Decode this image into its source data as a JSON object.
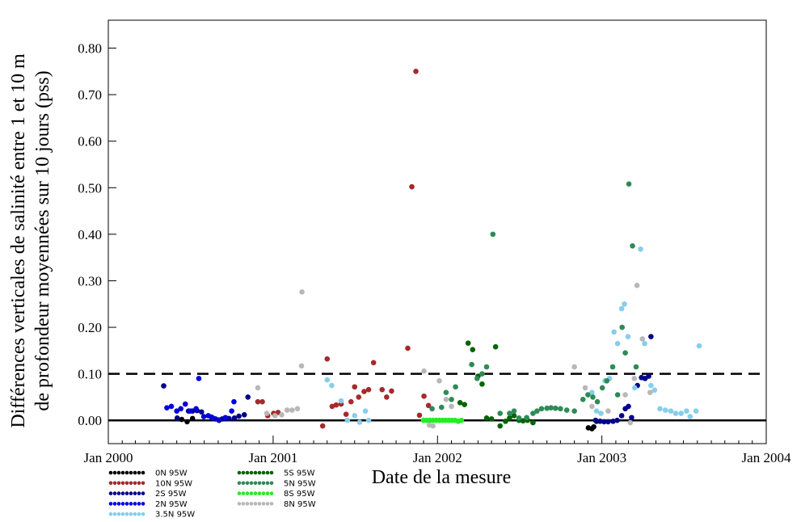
{
  "chart_data": {
    "type": "scatter",
    "title": "",
    "xlabel": "Date de la mesure",
    "ylabel_lines": [
      "Différences verticales de salinité entre 1 et 10 m",
      "de profondeur moyennées sur 10 jours (pss)"
    ],
    "xlim": [
      "2000-01-01",
      "2004-01-01"
    ],
    "ylim": [
      -0.05,
      0.86
    ],
    "x_ticks": [
      {
        "date": "2000-01-01",
        "label": "Jan 2000"
      },
      {
        "date": "2001-01-01",
        "label": "Jan 2001"
      },
      {
        "date": "2002-01-01",
        "label": "Jan 2002"
      },
      {
        "date": "2003-01-01",
        "label": "Jan 2003"
      },
      {
        "date": "2004-01-01",
        "label": "Jan 2004"
      }
    ],
    "y_ticks": [
      0,
      0.1,
      0.2,
      0.3,
      0.4,
      0.5,
      0.6,
      0.7,
      0.8
    ],
    "y_tick_labels": [
      "0.00",
      "0.10",
      "0.20",
      "0.30",
      "0.40",
      "0.50",
      "0.60",
      "0.70",
      "0.80"
    ],
    "reference_lines": [
      {
        "y": 0.0,
        "style": "solid"
      },
      {
        "y": 0.1,
        "style": "dashed"
      }
    ],
    "grid": false,
    "legend_position": "bottom-left",
    "series": [
      {
        "name": "0N 95W",
        "color": "#000000",
        "points": [
          [
            "2000-06-12",
            0.002
          ],
          [
            "2000-06-24",
            -0.003
          ],
          [
            "2000-07-06",
            0.004
          ],
          [
            "2000-09-03",
            0.0
          ],
          [
            "2002-12-02",
            -0.016
          ],
          [
            "2002-12-10",
            -0.018
          ],
          [
            "2002-12-14",
            -0.014
          ],
          [
            "2002-12-20",
            -0.002
          ]
        ]
      },
      {
        "name": "10N 95W",
        "color": "#a52a2a",
        "points": [
          [
            "2000-11-28",
            0.04
          ],
          [
            "2000-12-08",
            0.04
          ],
          [
            "2000-12-20",
            0.01
          ],
          [
            "2001-01-02",
            0.015
          ],
          [
            "2001-01-12",
            0.017
          ],
          [
            "2001-04-21",
            -0.012
          ],
          [
            "2001-05-01",
            0.132
          ],
          [
            "2001-05-12",
            0.03
          ],
          [
            "2001-05-21",
            0.033
          ],
          [
            "2001-06-01",
            0.035
          ],
          [
            "2001-06-12",
            0.013
          ],
          [
            "2001-06-23",
            0.04
          ],
          [
            "2001-07-01",
            0.072
          ],
          [
            "2001-07-10",
            0.05
          ],
          [
            "2001-07-22",
            0.062
          ],
          [
            "2001-08-01",
            0.066
          ],
          [
            "2001-08-12",
            0.124
          ],
          [
            "2001-08-31",
            0.066
          ],
          [
            "2001-09-10",
            0.05
          ],
          [
            "2001-09-21",
            0.063
          ],
          [
            "2001-10-27",
            0.155
          ],
          [
            "2001-11-05",
            0.502
          ],
          [
            "2001-11-14",
            0.75
          ],
          [
            "2001-11-22",
            0.011
          ],
          [
            "2001-12-02",
            0.052
          ],
          [
            "2001-12-12",
            0.032
          ]
        ]
      },
      {
        "name": "2S 95W",
        "color": "#00008b",
        "points": [
          [
            "2000-05-03",
            0.074
          ],
          [
            "2000-06-02",
            0.005
          ],
          [
            "2000-06-27",
            0.02
          ],
          [
            "2000-07-06",
            0.02
          ],
          [
            "2000-07-16",
            0.021
          ],
          [
            "2000-07-26",
            0.018
          ],
          [
            "2000-08-17",
            0.007
          ],
          [
            "2000-08-26",
            0.003
          ],
          [
            "2000-09-10",
            0.003
          ],
          [
            "2000-09-18",
            0.005
          ],
          [
            "2000-09-25",
            0.004
          ],
          [
            "2000-10-07",
            0.005
          ],
          [
            "2000-10-17",
            0.009
          ],
          [
            "2000-10-29",
            0.012
          ],
          [
            "2000-11-06",
            0.05
          ],
          [
            "2002-12-18",
            0.0
          ],
          [
            "2002-12-28",
            -0.002
          ],
          [
            "2003-01-06",
            -0.003
          ],
          [
            "2003-01-15",
            -0.003
          ],
          [
            "2003-01-26",
            -0.002
          ],
          [
            "2003-02-04",
            0.0
          ],
          [
            "2003-02-14",
            0.01
          ],
          [
            "2003-02-22",
            0.025
          ],
          [
            "2003-03-01",
            0.03
          ],
          [
            "2003-03-08",
            0.006
          ],
          [
            "2003-03-21",
            0.075
          ],
          [
            "2003-03-30",
            0.092
          ],
          [
            "2003-04-07",
            0.09
          ],
          [
            "2003-04-15",
            0.095
          ],
          [
            "2003-04-20",
            0.18
          ]
        ]
      },
      {
        "name": "2N 95W",
        "color": "#0000dd",
        "points": [
          [
            "2000-05-10",
            0.027
          ],
          [
            "2000-05-20",
            0.03
          ],
          [
            "2000-06-01",
            0.02
          ],
          [
            "2000-06-10",
            0.025
          ],
          [
            "2000-06-20",
            0.035
          ],
          [
            "2000-07-01",
            0.02
          ],
          [
            "2000-07-14",
            0.025
          ],
          [
            "2000-07-20",
            0.09
          ],
          [
            "2000-07-31",
            0.008
          ],
          [
            "2000-08-10",
            0.01
          ],
          [
            "2000-08-20",
            0.005
          ],
          [
            "2000-09-02",
            0.001
          ],
          [
            "2000-09-17",
            0.006
          ],
          [
            "2000-10-01",
            0.02
          ],
          [
            "2000-10-06",
            0.04
          ]
        ]
      },
      {
        "name": "3.5N 95W",
        "color": "#87ceeb",
        "points": [
          [
            "2001-05-01",
            0.087
          ],
          [
            "2001-05-11",
            0.075
          ],
          [
            "2001-06-01",
            0.042
          ],
          [
            "2001-06-15",
            0.0
          ],
          [
            "2001-07-01",
            0.01
          ],
          [
            "2001-07-12",
            -0.004
          ],
          [
            "2001-07-25",
            0.02
          ],
          [
            "2001-08-01",
            0.0
          ],
          [
            "2002-12-10",
            0.06
          ],
          [
            "2002-12-20",
            0.02
          ],
          [
            "2002-12-30",
            0.015
          ],
          [
            "2003-01-08",
            0.085
          ],
          [
            "2003-01-18",
            0.09
          ],
          [
            "2003-01-28",
            0.19
          ],
          [
            "2003-02-05",
            0.165
          ],
          [
            "2003-02-14",
            0.24
          ],
          [
            "2003-02-20",
            0.25
          ],
          [
            "2003-02-28",
            0.18
          ],
          [
            "2003-03-15",
            0.07
          ],
          [
            "2003-03-28",
            0.368
          ],
          [
            "2003-04-06",
            0.165
          ],
          [
            "2003-04-20",
            0.075
          ],
          [
            "2003-04-28",
            0.065
          ],
          [
            "2003-05-10",
            0.025
          ],
          [
            "2003-05-22",
            0.022
          ],
          [
            "2003-06-03",
            0.02
          ],
          [
            "2003-06-14",
            0.015
          ],
          [
            "2003-06-26",
            0.015
          ],
          [
            "2003-07-08",
            0.02
          ],
          [
            "2003-07-16",
            0.008
          ],
          [
            "2003-07-29",
            0.02
          ],
          [
            "2003-08-05",
            0.16
          ]
        ]
      },
      {
        "name": "5S 95W",
        "color": "#006400",
        "points": [
          [
            "2002-02-20",
            0.038
          ],
          [
            "2002-03-02",
            0.034
          ],
          [
            "2002-03-10",
            0.166
          ],
          [
            "2002-03-20",
            0.152
          ],
          [
            "2002-04-01",
            0.095
          ],
          [
            "2002-04-10",
            0.078
          ],
          [
            "2002-04-20",
            0.005
          ],
          [
            "2002-05-01",
            0.003
          ],
          [
            "2002-05-10",
            0.158
          ],
          [
            "2002-05-20",
            -0.012
          ],
          [
            "2002-06-01",
            -0.002
          ],
          [
            "2002-06-10",
            0.005
          ],
          [
            "2002-06-20",
            0.01
          ],
          [
            "2002-07-01",
            0.0
          ],
          [
            "2002-07-10",
            -0.001
          ],
          [
            "2002-07-20",
            0.0
          ],
          [
            "2002-08-01",
            -0.005
          ]
        ]
      },
      {
        "name": "5N 95W",
        "color": "#2e8b57",
        "points": [
          [
            "2001-12-20",
            0.025
          ],
          [
            "2002-01-10",
            0.028
          ],
          [
            "2002-01-20",
            0.06
          ],
          [
            "2002-02-01",
            0.045
          ],
          [
            "2002-02-10",
            0.072
          ],
          [
            "2002-03-18",
            0.12
          ],
          [
            "2002-03-30",
            0.09
          ],
          [
            "2002-04-10",
            0.1
          ],
          [
            "2002-04-20",
            0.115
          ],
          [
            "2002-05-04",
            0.4
          ],
          [
            "2002-05-20",
            0.015
          ],
          [
            "2002-06-10",
            0.015
          ],
          [
            "2002-06-20",
            0.02
          ],
          [
            "2002-07-01",
            0.005
          ],
          [
            "2002-07-18",
            0.006
          ],
          [
            "2002-08-01",
            0.015
          ],
          [
            "2002-08-10",
            0.02
          ],
          [
            "2002-08-20",
            0.025
          ],
          [
            "2002-09-01",
            0.026
          ],
          [
            "2002-09-10",
            0.027
          ],
          [
            "2002-09-20",
            0.026
          ],
          [
            "2002-10-01",
            0.025
          ],
          [
            "2002-10-15",
            0.022
          ],
          [
            "2002-11-01",
            0.02
          ],
          [
            "2002-11-20",
            0.045
          ],
          [
            "2002-12-01",
            0.055
          ],
          [
            "2002-12-12",
            0.05
          ],
          [
            "2002-12-22",
            0.04
          ],
          [
            "2003-01-02",
            0.07
          ],
          [
            "2003-01-12",
            0.085
          ],
          [
            "2003-01-25",
            0.115
          ],
          [
            "2003-02-05",
            0.055
          ],
          [
            "2003-02-15",
            0.2
          ],
          [
            "2003-02-22",
            0.145
          ],
          [
            "2003-03-02",
            0.508
          ],
          [
            "2003-03-10",
            0.375
          ],
          [
            "2003-03-18",
            0.115
          ]
        ]
      },
      {
        "name": "8S 95W",
        "color": "#22ee22",
        "points": [
          [
            "2001-12-01",
            0.0
          ],
          [
            "2001-12-08",
            0.0
          ],
          [
            "2001-12-15",
            0.0
          ],
          [
            "2001-12-22",
            0.0
          ],
          [
            "2001-12-29",
            0.0
          ],
          [
            "2002-01-05",
            0.0
          ],
          [
            "2002-01-12",
            0.0
          ],
          [
            "2002-01-19",
            0.0
          ],
          [
            "2002-01-26",
            0.0
          ],
          [
            "2002-02-02",
            0.0
          ],
          [
            "2002-02-09",
            0.0
          ],
          [
            "2002-02-16",
            -0.002
          ],
          [
            "2002-02-23",
            0.0
          ]
        ]
      },
      {
        "name": "8N 95W",
        "color": "#b8b8b8",
        "points": [
          [
            "2000-11-28",
            0.07
          ],
          [
            "2000-12-18",
            0.015
          ],
          [
            "2001-01-05",
            0.01
          ],
          [
            "2001-01-20",
            0.012
          ],
          [
            "2001-02-01",
            0.022
          ],
          [
            "2001-02-12",
            0.022
          ],
          [
            "2001-02-24",
            0.025
          ],
          [
            "2001-03-05",
            0.117
          ],
          [
            "2001-03-06",
            0.276
          ],
          [
            "2001-12-02",
            0.106
          ],
          [
            "2001-12-14",
            -0.01
          ],
          [
            "2001-12-22",
            -0.012
          ],
          [
            "2002-01-05",
            0.085
          ],
          [
            "2002-01-20",
            0.045
          ],
          [
            "2002-02-01",
            0.03
          ],
          [
            "2002-11-01",
            0.115
          ],
          [
            "2002-11-25",
            0.07
          ],
          [
            "2002-12-10",
            0.03
          ],
          [
            "2003-01-15",
            0.02
          ],
          [
            "2003-02-22",
            0.055
          ],
          [
            "2003-03-05",
            -0.005
          ],
          [
            "2003-03-14",
            0.09
          ],
          [
            "2003-03-20",
            0.29
          ],
          [
            "2003-04-01",
            0.175
          ],
          [
            "2003-04-18",
            0.06
          ]
        ]
      }
    ],
    "legend_columns": [
      [
        "0N 95W",
        "10N 95W",
        "2S 95W",
        "2N 95W",
        "3.5N 95W"
      ],
      [
        "5S 95W",
        "5N 95W",
        "8S 95W",
        "8N 95W"
      ]
    ]
  }
}
